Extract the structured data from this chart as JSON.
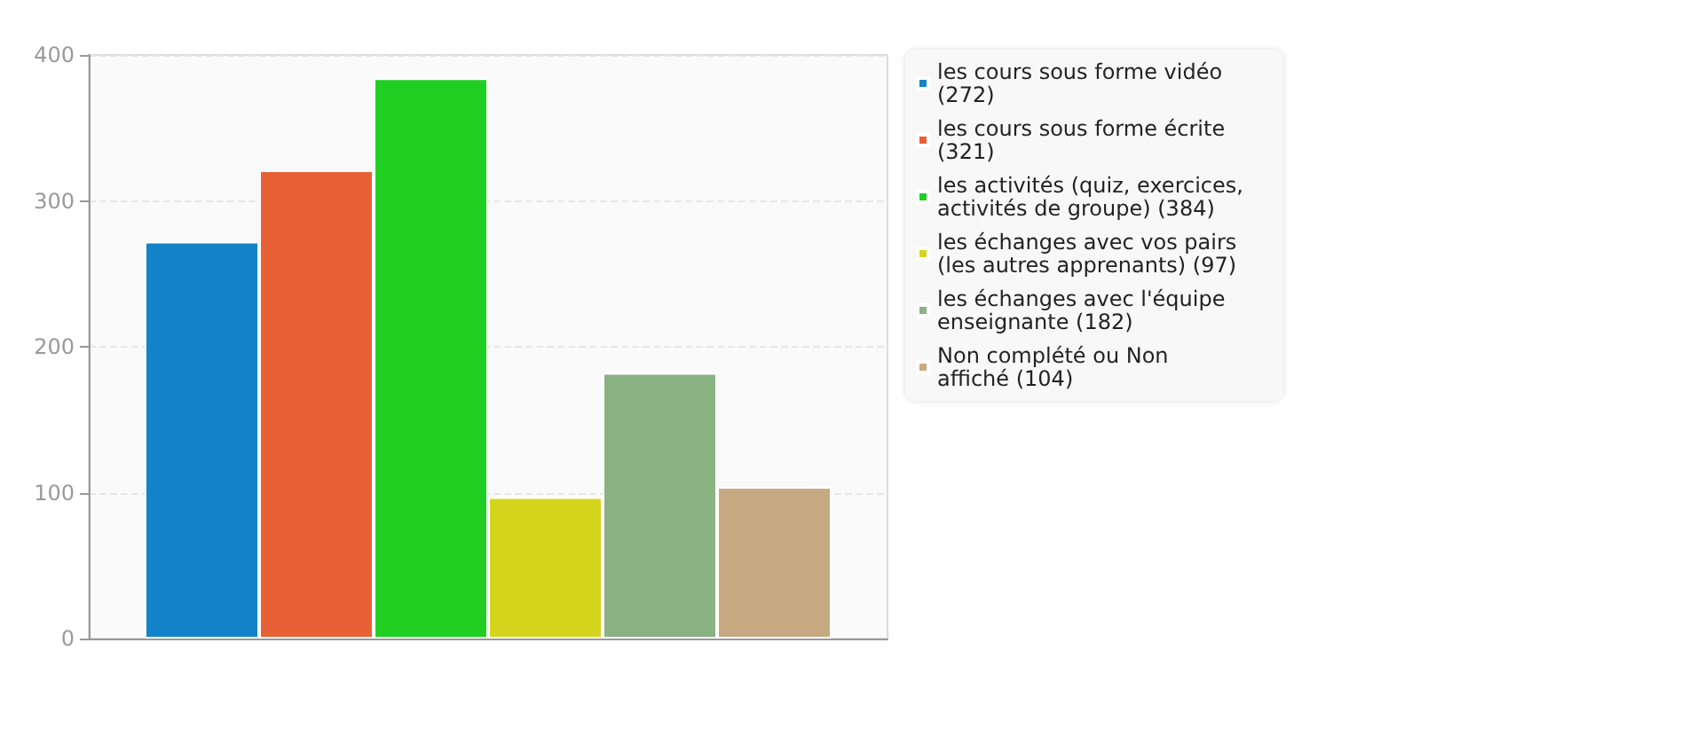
{
  "chart_data": {
    "type": "bar",
    "categories": [
      null
    ],
    "series": [
      {
        "name": "les cours sous forme vidéo (272)",
        "color": "#1482c8",
        "values": [
          272
        ]
      },
      {
        "name": "les cours sous forme écrite (321)",
        "color": "#e86035",
        "values": [
          321
        ]
      },
      {
        "name": "les activités (quiz, exercices, activités de groupe) (384)",
        "color": "#20cf22",
        "values": [
          384
        ]
      },
      {
        "name": "les échanges avec vos pairs (les autres apprenants) (97)",
        "color": "#d4d41c",
        "values": [
          97
        ]
      },
      {
        "name": "les échanges avec l'équipe enseignante (182)",
        "color": "#8ab282",
        "values": [
          182
        ]
      },
      {
        "name": "Non complété ou Non affiché (104)",
        "color": "#c8aa82",
        "values": [
          104
        ]
      }
    ],
    "ylim": [
      0,
      400
    ],
    "yticks": [
      0,
      100,
      200,
      300,
      400
    ],
    "grid": "y",
    "legend": "right"
  }
}
